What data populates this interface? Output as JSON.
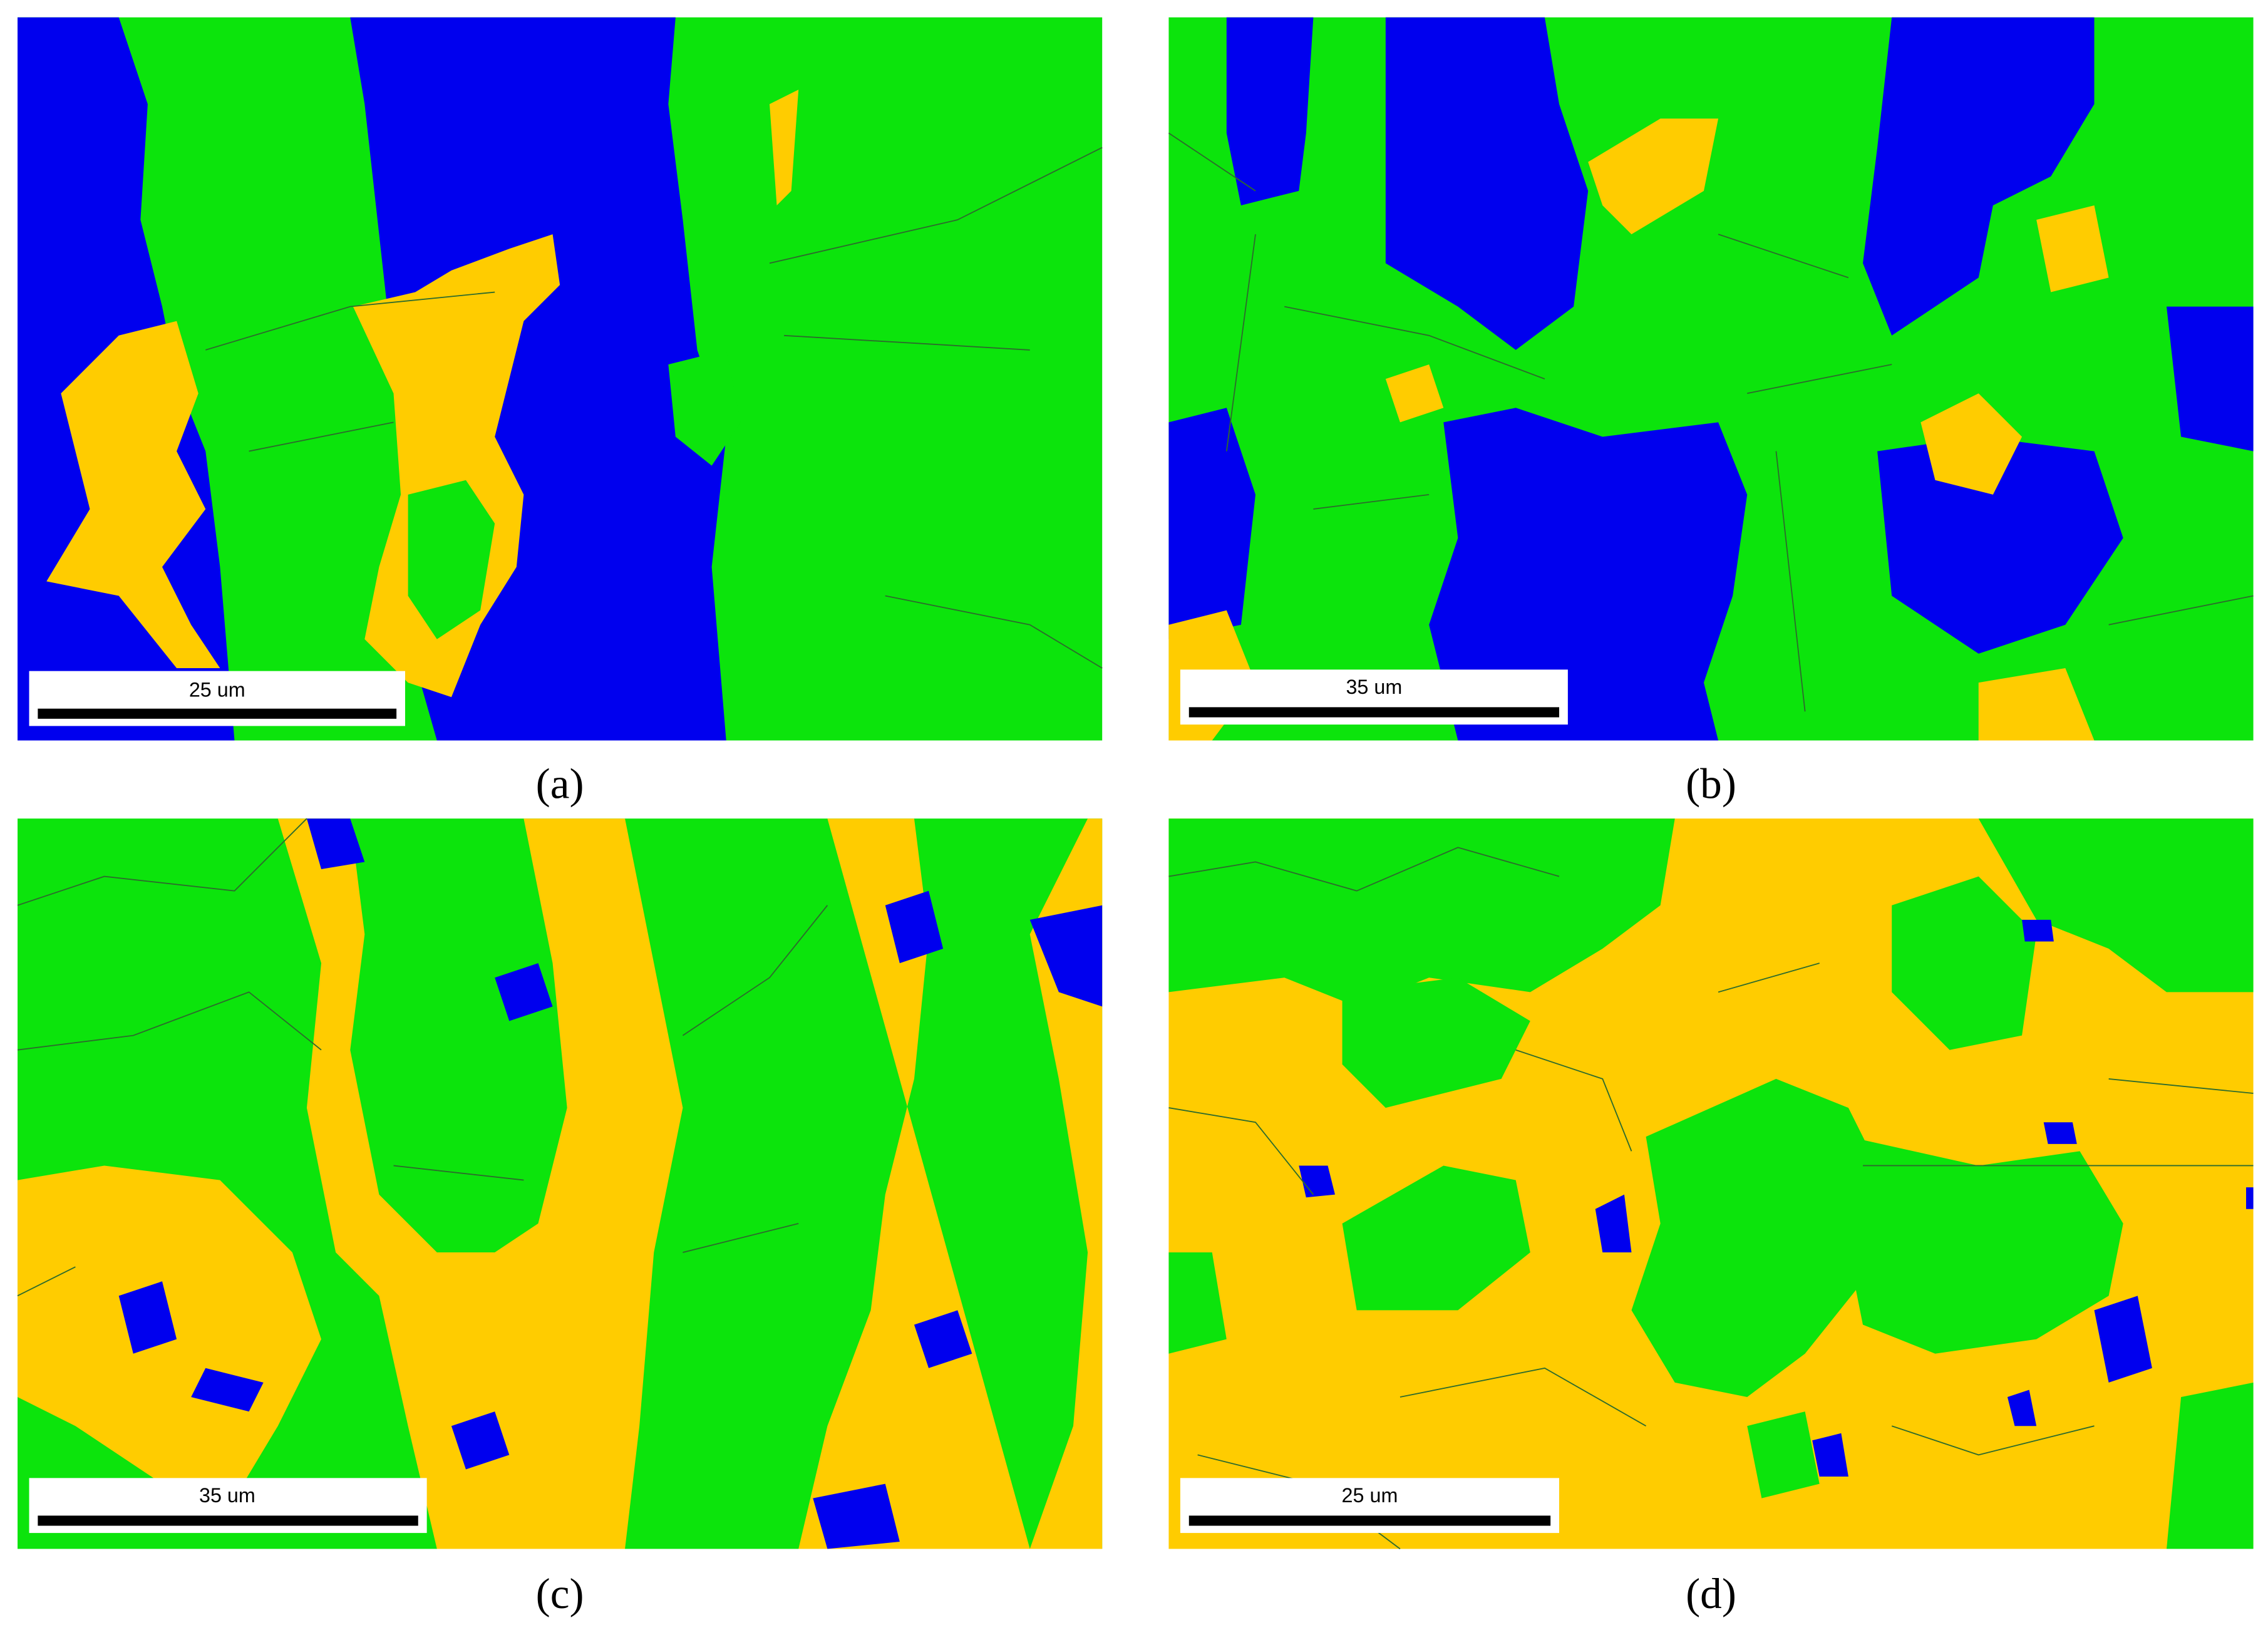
{
  "panels": [
    {
      "label": "(a)",
      "scale_bar": "25 um"
    },
    {
      "label": "(b)",
      "scale_bar": "35 um"
    },
    {
      "label": "(c)",
      "scale_bar": "35 um"
    },
    {
      "label": "(d)",
      "scale_bar": "25 um"
    }
  ]
}
